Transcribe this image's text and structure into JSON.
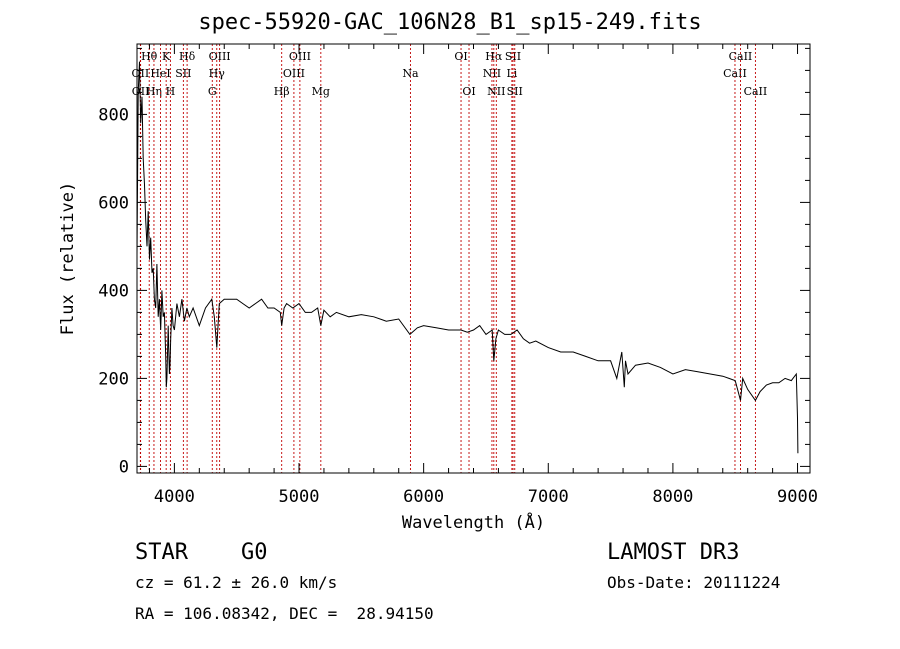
{
  "header": {
    "title": "spec-55920-GAC_106N28_B1_sp15-249.fits"
  },
  "footer": {
    "classification": "STAR    G0",
    "redshift": "cz = 61.2 ± 26.0 km/s",
    "coordinates": "RA = 106.08342, DEC =  28.94150",
    "survey": "LAMOST DR3",
    "obs_date": "Obs-Date: 20111224"
  },
  "colors": {
    "spectrum": "#000000",
    "line_marker": "#c00000"
  },
  "chart_data": {
    "type": "line",
    "title": "spec-55920-GAC_106N28_B1_sp15-249.fits",
    "xlabel": "Wavelength (Å)",
    "ylabel": "Flux (relative)",
    "xlim": [
      3700,
      9100
    ],
    "ylim": [
      -15,
      960
    ],
    "xticks": [
      4000,
      5000,
      6000,
      7000,
      8000,
      9000
    ],
    "yticks": [
      0,
      200,
      400,
      600,
      800
    ],
    "series": [
      {
        "name": "flux",
        "x": [
          3700,
          3710,
          3720,
          3730,
          3740,
          3750,
          3760,
          3770,
          3780,
          3790,
          3800,
          3810,
          3820,
          3830,
          3840,
          3850,
          3860,
          3870,
          3880,
          3890,
          3900,
          3910,
          3920,
          3930,
          3935,
          3940,
          3950,
          3960,
          3965,
          3970,
          3980,
          3990,
          4000,
          4020,
          4040,
          4060,
          4080,
          4100,
          4120,
          4150,
          4200,
          4250,
          4300,
          4320,
          4340,
          4360,
          4400,
          4450,
          4500,
          4550,
          4600,
          4650,
          4700,
          4750,
          4800,
          4850,
          4861,
          4880,
          4900,
          4950,
          5000,
          5050,
          5100,
          5150,
          5175,
          5200,
          5250,
          5300,
          5400,
          5500,
          5600,
          5700,
          5800,
          5890,
          5950,
          6000,
          6100,
          6200,
          6300,
          6350,
          6400,
          6450,
          6500,
          6550,
          6563,
          6580,
          6600,
          6650,
          6700,
          6750,
          6800,
          6850,
          6900,
          7000,
          7100,
          7200,
          7300,
          7400,
          7500,
          7550,
          7590,
          7610,
          7620,
          7640,
          7700,
          7800,
          7900,
          8000,
          8100,
          8200,
          8300,
          8400,
          8450,
          8500,
          8542,
          8560,
          8600,
          8662,
          8700,
          8750,
          8800,
          8850,
          8900,
          8950,
          8990,
          9000,
          9003
        ],
        "values": [
          480,
          850,
          920,
          780,
          840,
          700,
          640,
          560,
          500,
          580,
          470,
          520,
          440,
          450,
          380,
          360,
          460,
          340,
          380,
          310,
          400,
          340,
          350,
          250,
          180,
          200,
          320,
          210,
          230,
          290,
          360,
          320,
          310,
          370,
          340,
          380,
          330,
          360,
          340,
          360,
          320,
          360,
          380,
          340,
          270,
          370,
          380,
          380,
          380,
          370,
          360,
          370,
          380,
          360,
          360,
          350,
          320,
          360,
          370,
          360,
          370,
          350,
          350,
          360,
          320,
          355,
          340,
          350,
          340,
          345,
          340,
          330,
          335,
          300,
          315,
          320,
          315,
          310,
          310,
          305,
          310,
          320,
          300,
          310,
          240,
          290,
          310,
          300,
          300,
          310,
          290,
          280,
          285,
          270,
          260,
          260,
          250,
          240,
          240,
          200,
          260,
          180,
          240,
          210,
          230,
          235,
          225,
          210,
          220,
          215,
          210,
          205,
          200,
          195,
          150,
          200,
          175,
          150,
          170,
          185,
          190,
          190,
          200,
          195,
          210,
          110,
          30
        ]
      }
    ],
    "lines": [
      {
        "name": "OII",
        "wave": 3727,
        "row": 1
      },
      {
        "name": "OII",
        "wave": 3729,
        "row": 2
      },
      {
        "name": "Hθ",
        "wave": 3798,
        "row": 0
      },
      {
        "name": "Hη",
        "wave": 3836,
        "row": 2
      },
      {
        "name": "HeI",
        "wave": 3889,
        "row": 1
      },
      {
        "name": "K",
        "wave": 3934,
        "row": 0
      },
      {
        "name": "H",
        "wave": 3968,
        "row": 2
      },
      {
        "name": "SII",
        "wave": 4072,
        "row": 1
      },
      {
        "name": "Hδ",
        "wave": 4102,
        "row": 0
      },
      {
        "name": "G",
        "wave": 4304,
        "row": 2
      },
      {
        "name": "Hγ",
        "wave": 4340,
        "row": 1
      },
      {
        "name": "OIII",
        "wave": 4363,
        "row": 0
      },
      {
        "name": "Hβ",
        "wave": 4861,
        "row": 2
      },
      {
        "name": "OIII",
        "wave": 4959,
        "row": 1
      },
      {
        "name": "OIII",
        "wave": 5007,
        "row": 0
      },
      {
        "name": "Mg",
        "wave": 5175,
        "row": 2
      },
      {
        "name": "Na",
        "wave": 5894,
        "row": 1
      },
      {
        "name": "OI",
        "wave": 6300,
        "row": 0
      },
      {
        "name": "OI",
        "wave": 6364,
        "row": 2
      },
      {
        "name": "NII",
        "wave": 6548,
        "row": 1
      },
      {
        "name": "Hα",
        "wave": 6563,
        "row": 0
      },
      {
        "name": "NII",
        "wave": 6583,
        "row": 2
      },
      {
        "name": "Li",
        "wave": 6708,
        "row": 1
      },
      {
        "name": "SII",
        "wave": 6717,
        "row": 0
      },
      {
        "name": "SII",
        "wave": 6731,
        "row": 2
      },
      {
        "name": "CaII",
        "wave": 8498,
        "row": 1
      },
      {
        "name": "CaII",
        "wave": 8542,
        "row": 0
      },
      {
        "name": "CaII",
        "wave": 8662,
        "row": 2
      }
    ]
  }
}
